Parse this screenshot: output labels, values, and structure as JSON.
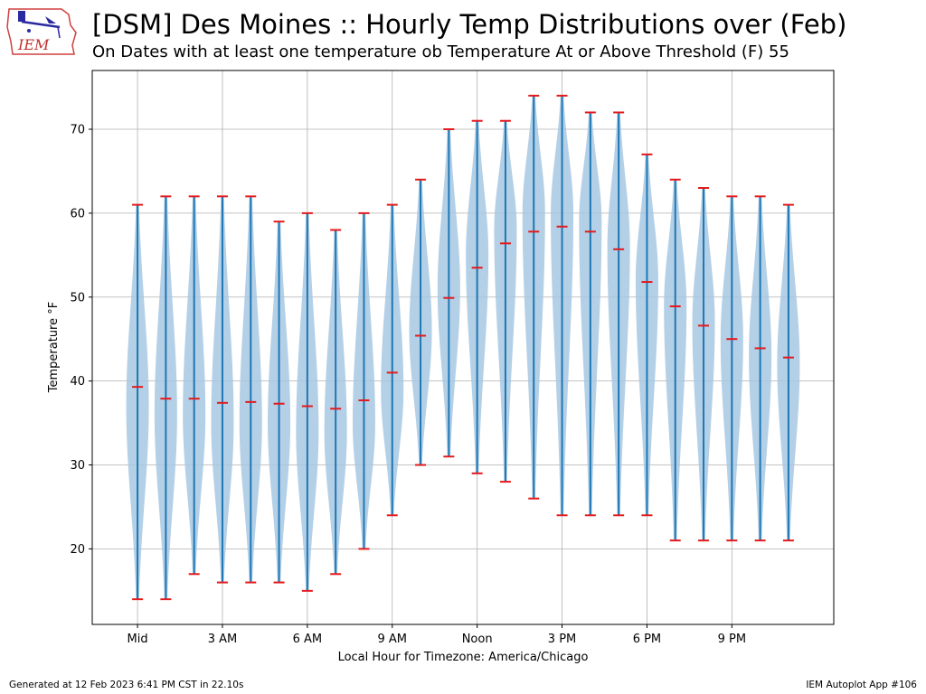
{
  "header": {
    "title": "[DSM] Des Moines :: Hourly Temp Distributions over (Feb)",
    "subtitle": "On Dates with at least one temperature ob Temperature At or Above Threshold (F) 55",
    "logo_text": "IEM"
  },
  "footer": {
    "generated": "Generated at 12 Feb 2023 6:41 PM CST in 22.10s",
    "app": "IEM Autoplot App #106"
  },
  "colors": {
    "violin_fill": "#a6c8e3",
    "line": "#1f77b4",
    "marker": "#e41a1c",
    "grid": "#b0b0b0"
  },
  "chart_data": {
    "type": "violin",
    "xlabel": "Local Hour for Timezone: America/Chicago",
    "ylabel": "Temperature °F",
    "ylim": [
      11,
      77
    ],
    "yticks": [
      20,
      30,
      40,
      50,
      60,
      70
    ],
    "xtick_labels": [
      {
        "hour": 0,
        "label": "Mid"
      },
      {
        "hour": 3,
        "label": "3 AM"
      },
      {
        "hour": 6,
        "label": "6 AM"
      },
      {
        "hour": 9,
        "label": "9 AM"
      },
      {
        "hour": 12,
        "label": "Noon"
      },
      {
        "hour": 15,
        "label": "3 PM"
      },
      {
        "hour": 18,
        "label": "6 PM"
      },
      {
        "hour": 21,
        "label": "9 PM"
      }
    ],
    "grid": true,
    "hours": [
      0,
      1,
      2,
      3,
      4,
      5,
      6,
      7,
      8,
      9,
      10,
      11,
      12,
      13,
      14,
      15,
      16,
      17,
      18,
      19,
      20,
      21,
      22,
      23
    ],
    "min": [
      14,
      14,
      17,
      16,
      16,
      16,
      15,
      17,
      20,
      24,
      30,
      31,
      29,
      28,
      26,
      24,
      24,
      24,
      24,
      21,
      21,
      21,
      21,
      21
    ],
    "max": [
      61,
      62,
      62,
      62,
      62,
      59,
      60,
      58,
      60,
      61,
      64,
      70,
      71,
      71,
      74,
      74,
      72,
      72,
      67,
      64,
      63,
      62,
      62,
      61
    ],
    "mean": [
      39.3,
      37.9,
      37.9,
      37.4,
      37.5,
      37.3,
      37.0,
      36.7,
      37.7,
      41.0,
      45.4,
      49.9,
      53.5,
      56.4,
      57.8,
      58.4,
      57.8,
      55.7,
      51.8,
      48.9,
      46.6,
      45.0,
      43.9,
      42.8
    ],
    "mode": [
      37,
      36,
      36,
      35,
      35,
      35,
      34,
      34,
      35,
      39,
      46,
      51,
      55,
      58,
      60,
      60,
      59,
      56,
      52,
      49,
      47,
      45,
      43,
      42
    ]
  }
}
